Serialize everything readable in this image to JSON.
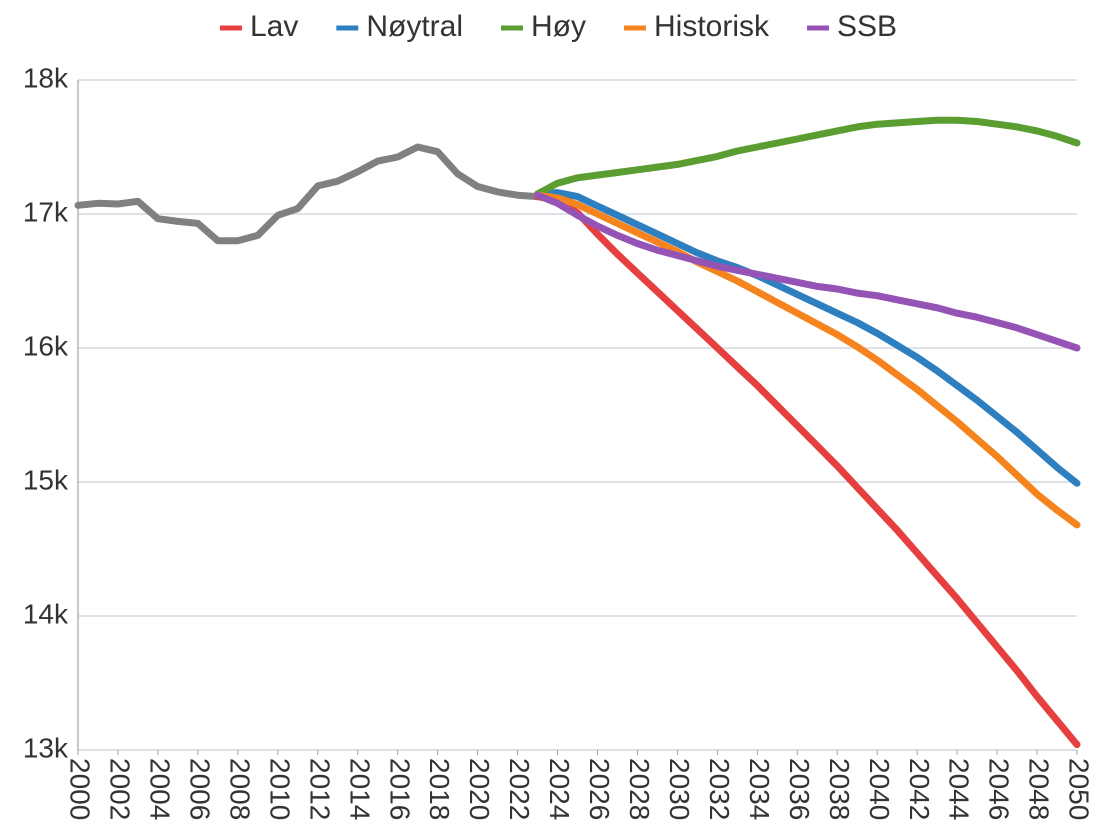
{
  "chart_data": {
    "type": "line",
    "x": [
      2000,
      2001,
      2002,
      2003,
      2004,
      2005,
      2006,
      2007,
      2008,
      2009,
      2010,
      2011,
      2012,
      2013,
      2014,
      2015,
      2016,
      2017,
      2018,
      2019,
      2020,
      2021,
      2022,
      2023,
      2024,
      2025,
      2026,
      2027,
      2028,
      2029,
      2030,
      2031,
      2032,
      2033,
      2034,
      2035,
      2036,
      2037,
      2038,
      2039,
      2040,
      2041,
      2042,
      2043,
      2044,
      2045,
      2046,
      2047,
      2048,
      2049,
      2050
    ],
    "series": [
      {
        "color": "#808080",
        "values": [
          17065,
          17080,
          17075,
          17095,
          16965,
          16945,
          16930,
          16800,
          16800,
          16840,
          16990,
          17040,
          17210,
          17245,
          17315,
          17395,
          17425,
          17500,
          17465,
          17300,
          17205,
          17165,
          17140,
          17130,
          null,
          null,
          null,
          null,
          null,
          null,
          null,
          null,
          null,
          null,
          null,
          null,
          null,
          null,
          null,
          null,
          null,
          null,
          null,
          null,
          null,
          null,
          null,
          null,
          null,
          null,
          null
        ]
      },
      {
        "name": "Lav",
        "color": "#e5403f",
        "values": [
          null,
          null,
          null,
          null,
          null,
          null,
          null,
          null,
          null,
          null,
          null,
          null,
          null,
          null,
          null,
          null,
          null,
          null,
          null,
          null,
          null,
          null,
          null,
          17130,
          17100,
          17010,
          16850,
          16700,
          16560,
          16420,
          16280,
          16140,
          16000,
          15860,
          15720,
          15570,
          15420,
          15270,
          15120,
          14960,
          14800,
          14640,
          14470,
          14300,
          14130,
          13950,
          13770,
          13590,
          13400,
          13220,
          13040
        ]
      },
      {
        "name": "Nøytral",
        "color": "#2e7fbf",
        "values": [
          null,
          null,
          null,
          null,
          null,
          null,
          null,
          null,
          null,
          null,
          null,
          null,
          null,
          null,
          null,
          null,
          null,
          null,
          null,
          null,
          null,
          null,
          null,
          17150,
          17160,
          17130,
          17060,
          16990,
          16920,
          16850,
          16780,
          16710,
          16650,
          16600,
          16540,
          16470,
          16400,
          16330,
          16260,
          16190,
          16110,
          16020,
          15930,
          15830,
          15720,
          15610,
          15490,
          15370,
          15240,
          15110,
          14990
        ]
      },
      {
        "name": "Høy",
        "color": "#5a9e32",
        "values": [
          null,
          null,
          null,
          null,
          null,
          null,
          null,
          null,
          null,
          null,
          null,
          null,
          null,
          null,
          null,
          null,
          null,
          null,
          null,
          null,
          null,
          null,
          null,
          17150,
          17230,
          17270,
          17290,
          17310,
          17330,
          17350,
          17370,
          17400,
          17430,
          17470,
          17500,
          17530,
          17560,
          17590,
          17620,
          17650,
          17670,
          17680,
          17690,
          17700,
          17700,
          17690,
          17670,
          17650,
          17620,
          17580,
          17530
        ]
      },
      {
        "name": "Historisk",
        "color": "#f5841f",
        "values": [
          null,
          null,
          null,
          null,
          null,
          null,
          null,
          null,
          null,
          null,
          null,
          null,
          null,
          null,
          null,
          null,
          null,
          null,
          null,
          null,
          null,
          null,
          null,
          17140,
          17120,
          17070,
          17000,
          16930,
          16860,
          16790,
          16720,
          16640,
          16570,
          16500,
          16420,
          16340,
          16260,
          16180,
          16100,
          16010,
          15910,
          15800,
          15690,
          15570,
          15450,
          15320,
          15190,
          15050,
          14910,
          14790,
          14680
        ]
      },
      {
        "name": "SSB",
        "color": "#9554b5",
        "values": [
          null,
          null,
          null,
          null,
          null,
          null,
          null,
          null,
          null,
          null,
          null,
          null,
          null,
          null,
          null,
          null,
          null,
          null,
          null,
          null,
          null,
          null,
          null,
          17140,
          17080,
          16990,
          16910,
          16840,
          16780,
          16730,
          16690,
          16650,
          16610,
          16580,
          16550,
          16520,
          16490,
          16460,
          16440,
          16410,
          16390,
          16360,
          16330,
          16300,
          16260,
          16230,
          16190,
          16150,
          16100,
          16050,
          16000
        ]
      }
    ],
    "xlim": [
      2000,
      2050
    ],
    "xticks": [
      2000,
      2002,
      2004,
      2006,
      2008,
      2010,
      2012,
      2014,
      2016,
      2018,
      2020,
      2022,
      2024,
      2026,
      2028,
      2030,
      2032,
      2034,
      2036,
      2038,
      2040,
      2042,
      2044,
      2046,
      2048,
      2050
    ],
    "ylim": [
      13000,
      18000
    ],
    "yticks": [
      {
        "value": 13000,
        "label": "13k"
      },
      {
        "value": 14000,
        "label": "14k"
      },
      {
        "value": 15000,
        "label": "15k"
      },
      {
        "value": 16000,
        "label": "16k"
      },
      {
        "value": 17000,
        "label": "17k"
      },
      {
        "value": 18000,
        "label": "18k"
      }
    ],
    "grid": true,
    "legend": "top"
  }
}
